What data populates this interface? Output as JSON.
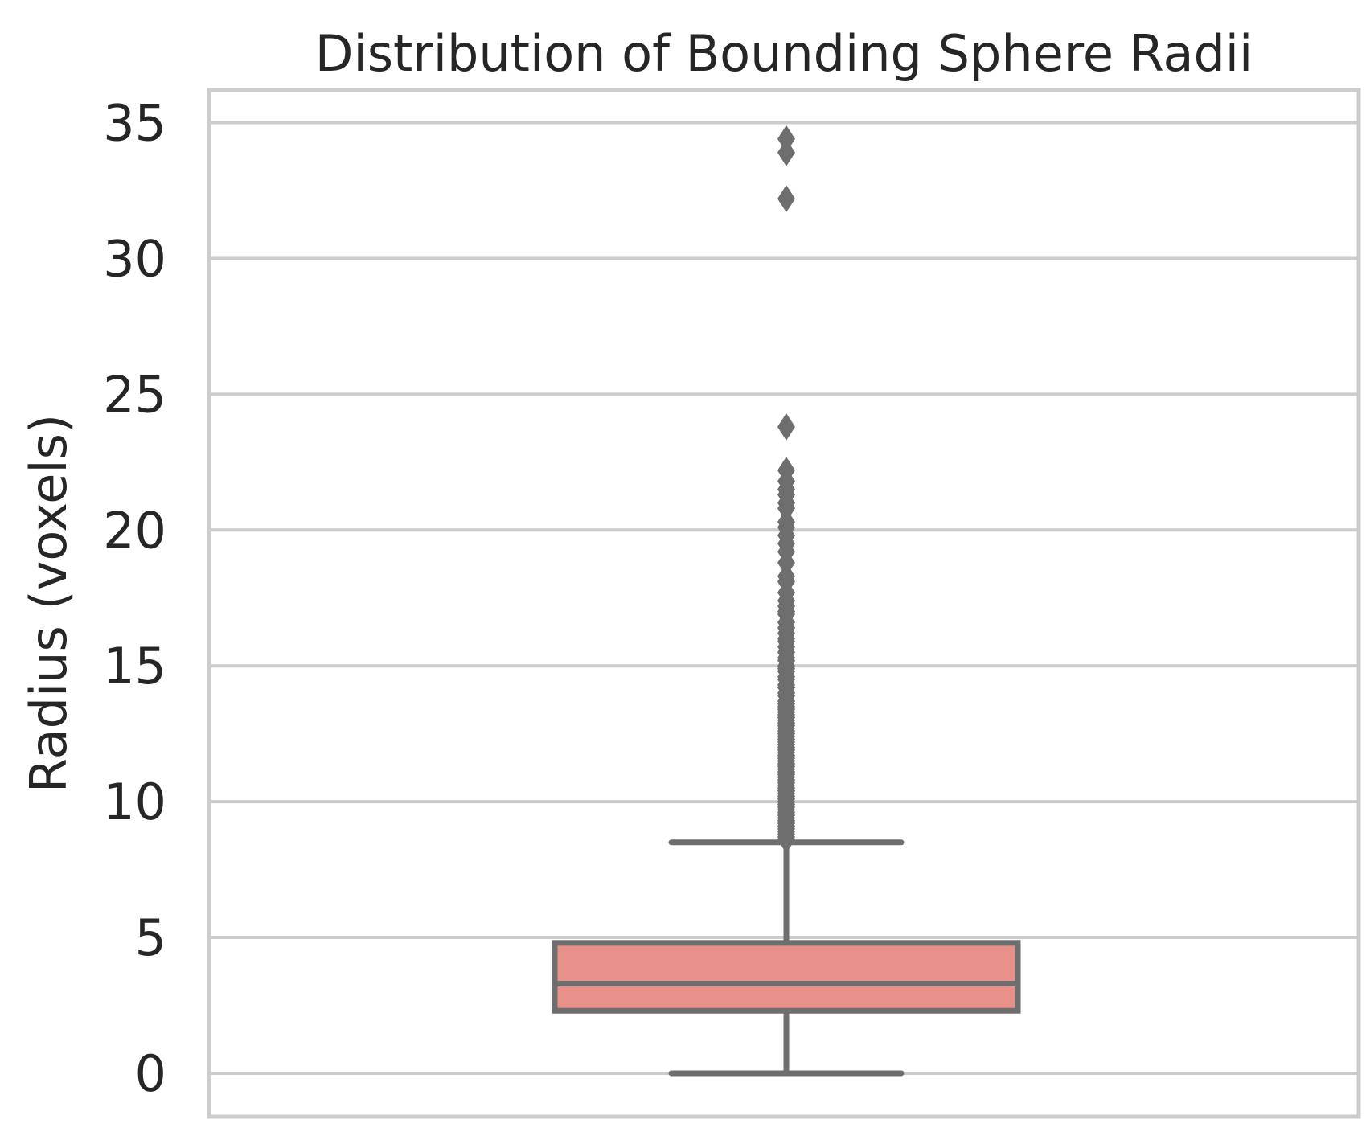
{
  "chart_data": {
    "type": "box",
    "title": "Distribution of Bounding Sphere Radii",
    "xlabel": "",
    "ylabel": "Radius (voxels)",
    "ylim": [
      -1.6,
      36.2
    ],
    "yticks": [
      0,
      5,
      10,
      15,
      20,
      25,
      30,
      35
    ],
    "grid": true,
    "colors": {
      "box_fill": "#E8908A",
      "box_edge": "#6E6E6E",
      "grid": "#CCCCCC",
      "spine": "#CCCCCC",
      "text": "#262626"
    },
    "box": {
      "whisker_low": 0.0,
      "q1": 2.3,
      "median": 3.3,
      "q3": 4.8,
      "whisker_high": 8.5
    },
    "outliers": [
      8.6,
      8.7,
      8.8,
      8.9,
      9.0,
      9.1,
      9.2,
      9.3,
      9.4,
      9.5,
      9.6,
      9.7,
      9.8,
      9.9,
      10.0,
      10.1,
      10.2,
      10.3,
      10.4,
      10.5,
      10.6,
      10.7,
      10.8,
      10.9,
      11.0,
      11.1,
      11.2,
      11.3,
      11.4,
      11.5,
      11.6,
      11.7,
      11.8,
      11.9,
      12.0,
      12.1,
      12.2,
      12.3,
      12.4,
      12.5,
      12.6,
      12.7,
      12.8,
      12.9,
      13.0,
      13.1,
      13.2,
      13.3,
      13.4,
      13.5,
      13.6,
      13.7,
      13.9,
      14.0,
      14.2,
      14.3,
      14.5,
      14.6,
      14.8,
      14.9,
      15.0,
      15.2,
      15.3,
      15.5,
      15.7,
      15.9,
      16.0,
      16.2,
      16.4,
      16.6,
      16.9,
      17.0,
      17.2,
      17.4,
      17.7,
      18.1,
      18.3,
      18.8,
      19.2,
      19.5,
      19.8,
      20.1,
      20.3,
      20.8,
      21.0,
      21.3,
      21.5,
      21.8,
      22.2,
      23.8,
      32.2,
      33.9,
      34.4
    ]
  }
}
